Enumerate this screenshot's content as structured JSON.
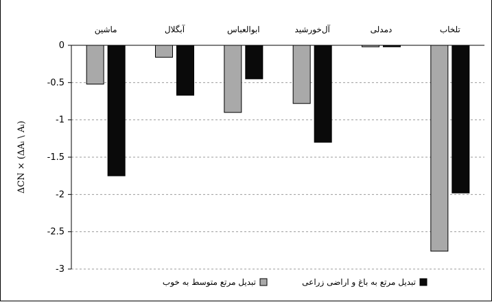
{
  "chart_data": {
    "type": "bar",
    "categories": [
      "ماشین",
      "آبگلال",
      "ابوالعباس",
      "آل‌خورشید",
      "دمدلی",
      "تلخاب"
    ],
    "series": [
      {
        "name": "تبدیل مرتع متوسط به خوب",
        "color": "#a9a9a9",
        "values": [
          -0.52,
          -0.16,
          -0.9,
          -0.78,
          -0.02,
          -2.76
        ]
      },
      {
        "name": "تبدیل مرتع به باغ و اراضی زراعی",
        "color": "#0a0a0a",
        "values": [
          -1.75,
          -0.67,
          -0.45,
          -1.3,
          -0.02,
          -1.98
        ]
      }
    ],
    "ylabel": "ΔCN × (ΔAᵢ \\ Aᵢ)",
    "ylim": [
      -3,
      0
    ],
    "yticks": [
      0,
      -0.5,
      -1,
      -1.5,
      -2,
      -2.5,
      -3
    ],
    "ytick_labels": [
      "0",
      "-0.5",
      "-1",
      "-1.5",
      "-2",
      "-2.5",
      "-3"
    ],
    "grid": true,
    "legend_position": "bottom"
  }
}
